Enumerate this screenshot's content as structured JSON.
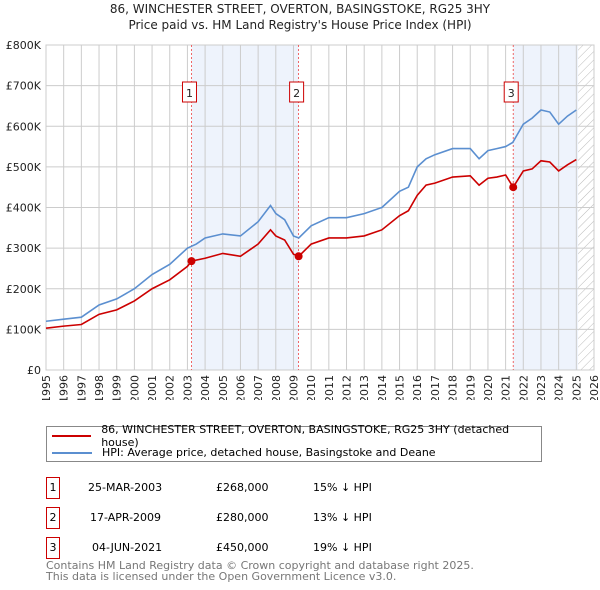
{
  "chart_data": {
    "type": "line",
    "title": "86, WINCHESTER STREET, OVERTON, BASINGSTOKE, RG25 3HY",
    "subtitle": "Price paid vs. HM Land Registry's House Price Index (HPI)",
    "xlim": [
      1995,
      2026
    ],
    "ylim": [
      0,
      800000
    ],
    "x_ticks": [
      "1995",
      "1996",
      "1997",
      "1998",
      "1999",
      "2000",
      "2001",
      "2002",
      "2003",
      "2004",
      "2005",
      "2006",
      "2007",
      "2008",
      "2009",
      "2010",
      "2011",
      "2012",
      "2013",
      "2014",
      "2015",
      "2016",
      "2017",
      "2018",
      "2019",
      "2020",
      "2021",
      "2022",
      "2023",
      "2024",
      "2025",
      "2026"
    ],
    "y_ticks": [
      {
        "v": 0,
        "l": "£0"
      },
      {
        "v": 100000,
        "l": "£100K"
      },
      {
        "v": 200000,
        "l": "£200K"
      },
      {
        "v": 300000,
        "l": "£300K"
      },
      {
        "v": 400000,
        "l": "£400K"
      },
      {
        "v": 500000,
        "l": "£500K"
      },
      {
        "v": 600000,
        "l": "£600K"
      },
      {
        "v": 700000,
        "l": "£700K"
      },
      {
        "v": 800000,
        "l": "£800K"
      }
    ],
    "grid": true,
    "series": [
      {
        "name": "86, WINCHESTER STREET, OVERTON, BASINGSTOKE, RG25 3HY (detached house)",
        "color": "#cc0000",
        "x": [
          1995,
          1996,
          1997,
          1998,
          1999,
          2000,
          2001,
          2002,
          2003,
          2003.23,
          2004,
          2005,
          2006,
          2007,
          2007.7,
          2008,
          2008.5,
          2009,
          2009.3,
          2010,
          2011,
          2012,
          2013,
          2014,
          2015,
          2015.5,
          2016,
          2016.5,
          2017,
          2018,
          2019,
          2019.5,
          2020,
          2020.5,
          2021,
          2021.43,
          2022,
          2022.5,
          2023,
          2023.5,
          2024,
          2024.5,
          2025
        ],
        "y": [
          103000,
          108000,
          112000,
          137000,
          148000,
          170000,
          200000,
          222000,
          255000,
          268000,
          275000,
          287000,
          280000,
          310000,
          345000,
          330000,
          320000,
          285000,
          280000,
          310000,
          325000,
          325000,
          330000,
          345000,
          380000,
          392000,
          430000,
          455000,
          460000,
          475000,
          478000,
          455000,
          472000,
          475000,
          480000,
          450000,
          490000,
          495000,
          515000,
          512000,
          490000,
          505000,
          518000
        ]
      },
      {
        "name": "HPI: Average price, detached house, Basingstoke and Deane",
        "color": "#5b8fd0",
        "x": [
          1995,
          1996,
          1997,
          1998,
          1999,
          2000,
          2001,
          2002,
          2003,
          2003.5,
          2004,
          2005,
          2006,
          2007,
          2007.7,
          2008,
          2008.5,
          2009,
          2009.3,
          2010,
          2011,
          2012,
          2013,
          2014,
          2015,
          2015.5,
          2016,
          2016.5,
          2017,
          2018,
          2019,
          2019.5,
          2020,
          2020.5,
          2021,
          2021.4,
          2022,
          2022.5,
          2023,
          2023.5,
          2024,
          2024.5,
          2025
        ],
        "y": [
          120000,
          125000,
          130000,
          160000,
          175000,
          200000,
          235000,
          260000,
          300000,
          310000,
          325000,
          335000,
          330000,
          365000,
          405000,
          385000,
          370000,
          330000,
          325000,
          355000,
          375000,
          375000,
          385000,
          400000,
          440000,
          450000,
          500000,
          520000,
          530000,
          545000,
          545000,
          520000,
          540000,
          545000,
          550000,
          560000,
          605000,
          620000,
          640000,
          635000,
          605000,
          625000,
          640000
        ]
      }
    ],
    "sales": [
      {
        "id": "1",
        "x": 2003.23,
        "y": 268000,
        "date": "25-MAR-2003",
        "price": "£268,000",
        "hpi": "15% ↓ HPI"
      },
      {
        "id": "2",
        "x": 2009.29,
        "y": 280000,
        "date": "17-APR-2009",
        "price": "£280,000",
        "hpi": "13% ↓ HPI"
      },
      {
        "id": "3",
        "x": 2021.43,
        "y": 450000,
        "date": "04-JUN-2021",
        "price": "£450,000",
        "hpi": "19% ↓ HPI"
      }
    ],
    "shaded_ranges": [
      [
        2003.23,
        2009.29
      ],
      [
        2021.43,
        2025.1
      ]
    ],
    "forecast_from": 2025.1,
    "legend": "bottom"
  },
  "footer": [
    "Contains HM Land Registry data © Crown copyright and database right 2025.",
    "This data is licensed under the Open Government Licence v3.0."
  ]
}
